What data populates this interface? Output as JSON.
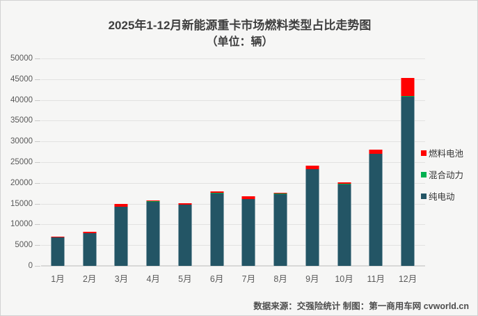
{
  "title": {
    "line1": "2025年1-12月新能源重卡市场燃料类型占比走势图",
    "line2": "（单位：辆）"
  },
  "footer": {
    "text": "数据来源：交强险统计  制图：第一商用车网 cvworld.cn"
  },
  "colors": {
    "pure_electric": "#235565",
    "hybrid": "#00b050",
    "fuel_cell": "#ff0000",
    "background": "#f6f6f5",
    "gridline": "#e2e2e1"
  },
  "legend": {
    "position": "right",
    "items": [
      {
        "key": "fuel-cell",
        "label": "燃料电池",
        "color": "#ff0000"
      },
      {
        "key": "hybrid",
        "label": "混合动力",
        "color": "#00b050"
      },
      {
        "key": "pure-electric",
        "label": "纯电动",
        "color": "#235565"
      }
    ]
  },
  "axes": {
    "y_ticks": [
      0,
      5000,
      10000,
      15000,
      20000,
      25000,
      30000,
      35000,
      40000,
      45000,
      50000
    ],
    "y_max": 50000
  },
  "chart_data": {
    "type": "bar",
    "stacked": true,
    "title": "2025年1-12月新能源重卡市场燃料类型占比走势图",
    "subtitle": "（单位：辆）",
    "xlabel": "",
    "ylabel": "",
    "ylim": [
      0,
      50000
    ],
    "grid": true,
    "legend_position": "right",
    "categories": [
      "1月",
      "2月",
      "3月",
      "4月",
      "5月",
      "6月",
      "7月",
      "8月",
      "9月",
      "10月",
      "11月",
      "12月"
    ],
    "series": [
      {
        "name": "纯电动",
        "key": "pure-electric",
        "color": "#235565",
        "values": [
          6800,
          7950,
          14200,
          15500,
          14800,
          17450,
          16150,
          17350,
          23400,
          19550,
          27050,
          40700
        ]
      },
      {
        "name": "混合动力",
        "key": "hybrid",
        "color": "#00b050",
        "values": [
          0,
          0,
          0,
          150,
          0,
          150,
          0,
          150,
          0,
          320,
          0,
          280
        ]
      },
      {
        "name": "燃料电池",
        "key": "fuel-cell",
        "color": "#ff0000",
        "values": [
          300,
          250,
          800,
          150,
          300,
          350,
          550,
          200,
          700,
          330,
          1050,
          4250
        ]
      }
    ]
  }
}
